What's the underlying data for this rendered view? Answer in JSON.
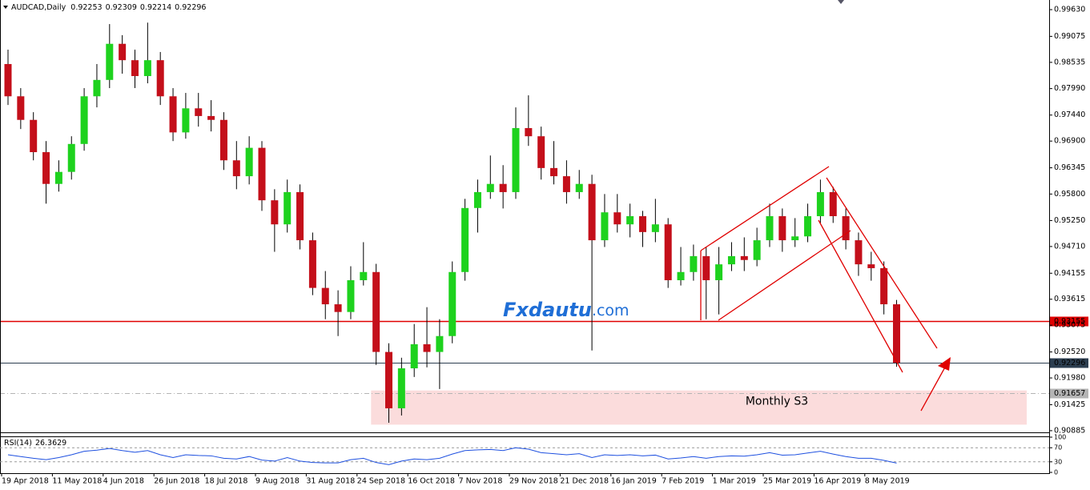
{
  "chart_data": {
    "type": "candlestick",
    "title": "AUDCAD,Daily",
    "header_ohlc": [
      0.92253,
      0.92309,
      0.92214,
      0.92296
    ],
    "bull_color": "#1ed21e",
    "bear_color": "#c40f1a",
    "categories": [
      "19 Apr 2018",
      null,
      null,
      null,
      "11 May 2018",
      null,
      null,
      null,
      "4 Jun 2018",
      null,
      null,
      null,
      "26 Jun 2018",
      null,
      null,
      null,
      "18 Jul 2018",
      null,
      null,
      null,
      "9 Aug 2018",
      null,
      null,
      null,
      "31 Aug 2018",
      null,
      null,
      null,
      "24 Sep 2018",
      null,
      null,
      null,
      "16 Oct 2018",
      null,
      null,
      null,
      "7 Nov 2018",
      null,
      null,
      null,
      "29 Nov 2018",
      null,
      null,
      null,
      "21 Dec 2018",
      null,
      null,
      null,
      "16 Jan 2019",
      null,
      null,
      null,
      "7 Feb 2019",
      null,
      null,
      null,
      "1 Mar 2019",
      null,
      null,
      null,
      "25 Mar 2019",
      null,
      null,
      null,
      "16 Apr 2019",
      null,
      null,
      null,
      "8 May 2019",
      null,
      null
    ],
    "open": [
      0.985,
      0.9783,
      0.9734,
      0.9667,
      0.9601,
      0.9626,
      0.9684,
      0.9783,
      0.9817,
      0.9892,
      0.9858,
      0.9825,
      0.9858,
      0.9783,
      0.9708,
      0.9758,
      0.9742,
      0.9734,
      0.965,
      0.9617,
      0.9676,
      0.9567,
      0.9517,
      0.9584,
      0.9484,
      0.9385,
      0.9351,
      0.9335,
      0.9401,
      0.9418,
      0.9252,
      0.9135,
      0.9218,
      0.9268,
      0.9252,
      0.9285,
      0.9418,
      0.9551,
      0.9584,
      0.9601,
      0.9584,
      0.9717,
      0.97,
      0.9634,
      0.9617,
      0.9584,
      0.9601,
      0.9484,
      0.9542,
      0.9517,
      0.9534,
      0.9501,
      0.9517,
      0.9401,
      0.9418,
      0.9451,
      0.9401,
      0.9434,
      0.9451,
      0.9443,
      0.9484,
      0.9534,
      0.9484,
      0.9492,
      0.9534,
      0.9584,
      0.9534,
      0.9484,
      0.9434,
      0.9426,
      0.9351
    ],
    "high": [
      0.988,
      0.98,
      0.975,
      0.969,
      0.965,
      0.97,
      0.98,
      0.985,
      0.9933,
      0.991,
      0.988,
      0.9936,
      0.9875,
      0.98,
      0.979,
      0.979,
      0.9775,
      0.975,
      0.969,
      0.97,
      0.969,
      0.959,
      0.961,
      0.96,
      0.95,
      0.942,
      0.938,
      0.943,
      0.948,
      0.9435,
      0.927,
      0.924,
      0.931,
      0.9345,
      0.932,
      0.944,
      0.957,
      0.961,
      0.966,
      0.964,
      0.976,
      0.9785,
      0.972,
      0.969,
      0.965,
      0.963,
      0.962,
      0.958,
      0.958,
      0.956,
      0.9545,
      0.957,
      0.953,
      0.947,
      0.9475,
      0.947,
      0.947,
      0.948,
      0.949,
      0.951,
      0.956,
      0.955,
      0.953,
      0.956,
      0.961,
      0.9595,
      0.955,
      0.95,
      0.946,
      0.944,
      0.936
    ],
    "low": [
      0.9765,
      0.9715,
      0.965,
      0.956,
      0.9585,
      0.961,
      0.967,
      0.976,
      0.98,
      0.983,
      0.98,
      0.981,
      0.9765,
      0.969,
      0.9695,
      0.972,
      0.971,
      0.963,
      0.959,
      0.96,
      0.9545,
      0.946,
      0.95,
      0.9465,
      0.937,
      0.932,
      0.9285,
      0.932,
      0.939,
      0.9225,
      0.9105,
      0.912,
      0.92,
      0.922,
      0.9175,
      0.927,
      0.94,
      0.95,
      0.957,
      0.955,
      0.957,
      0.968,
      0.961,
      0.96,
      0.956,
      0.957,
      0.9255,
      0.947,
      0.95,
      0.949,
      0.947,
      0.948,
      0.9385,
      0.939,
      0.94,
      0.932,
      0.933,
      0.942,
      0.942,
      0.943,
      0.947,
      0.946,
      0.947,
      0.948,
      0.952,
      0.952,
      0.9465,
      0.941,
      0.94,
      0.933,
      0.92214
    ],
    "close": [
      0.9783,
      0.9734,
      0.9667,
      0.9601,
      0.9626,
      0.9684,
      0.9783,
      0.9817,
      0.9892,
      0.9858,
      0.9825,
      0.9858,
      0.9783,
      0.9708,
      0.9758,
      0.9742,
      0.9734,
      0.965,
      0.9617,
      0.9676,
      0.9567,
      0.9517,
      0.9584,
      0.9484,
      0.9385,
      0.9351,
      0.9335,
      0.9401,
      0.9418,
      0.9252,
      0.9135,
      0.9218,
      0.9268,
      0.9252,
      0.9285,
      0.9418,
      0.9551,
      0.9584,
      0.9601,
      0.9584,
      0.9717,
      0.97,
      0.9634,
      0.9617,
      0.9584,
      0.9601,
      0.9484,
      0.9542,
      0.9517,
      0.9534,
      0.9501,
      0.9517,
      0.9401,
      0.9418,
      0.9451,
      0.9401,
      0.9434,
      0.9451,
      0.9443,
      0.9484,
      0.9534,
      0.9484,
      0.9492,
      0.9534,
      0.9584,
      0.9534,
      0.9484,
      0.9434,
      0.9426,
      0.9351,
      0.92296
    ],
    "ylim": [
      0.9085,
      0.9983
    ],
    "yticks": [
      {
        "value": 0.9963,
        "label": "0.99630"
      },
      {
        "value": 0.99075,
        "label": "0.99075"
      },
      {
        "value": 0.98535,
        "label": "0.98535"
      },
      {
        "value": 0.9799,
        "label": "0.97990"
      },
      {
        "value": 0.9744,
        "label": "0.97440"
      },
      {
        "value": 0.969,
        "label": "0.96900"
      },
      {
        "value": 0.96345,
        "label": "0.96345"
      },
      {
        "value": 0.958,
        "label": "0.95800"
      },
      {
        "value": 0.9525,
        "label": "0.95250"
      },
      {
        "value": 0.9471,
        "label": "0.94710"
      },
      {
        "value": 0.94155,
        "label": "0.94155"
      },
      {
        "value": 0.93615,
        "label": "0.93615"
      },
      {
        "value": 0.93075,
        "label": "0.93075"
      },
      {
        "value": 0.9252,
        "label": "0.92520"
      },
      {
        "value": 0.9198,
        "label": "0.91980"
      },
      {
        "value": 0.91425,
        "label": "0.91425"
      },
      {
        "value": 0.90885,
        "label": "0.90885"
      }
    ],
    "levels": [
      {
        "value": 0.93155,
        "color": "#e00000",
        "text_color": "#ffffff",
        "style": "solid"
      },
      {
        "value": 0.92296,
        "color": "#2c3e50",
        "text_color": "#ffffff",
        "style": "solid"
      },
      {
        "value": 0.91657,
        "color": "#b4b4b4",
        "text_color": "#ffffff",
        "style": "dashed"
      }
    ],
    "zone": {
      "label": "Monthly S3",
      "range": [
        0.9172,
        0.9101
      ],
      "color": "#fbdcdc"
    },
    "watermark": {
      "brand": "Fxdautu",
      "suffix": ".com"
    },
    "rsi": {
      "name": "RSI(14)",
      "color": "#1e50e0",
      "ylim": [
        0,
        100
      ],
      "yticks": [
        100,
        70,
        30,
        0
      ],
      "levels": [
        70,
        30
      ],
      "values": [
        50,
        45,
        40,
        36,
        42,
        50,
        60,
        63,
        68,
        62,
        57,
        62,
        50,
        42,
        50,
        48,
        47,
        40,
        38,
        45,
        35,
        32,
        42,
        32,
        28,
        27,
        27,
        36,
        40,
        28,
        22,
        32,
        38,
        36,
        40,
        52,
        62,
        64,
        65,
        62,
        70,
        66,
        56,
        53,
        50,
        53,
        42,
        50,
        48,
        50,
        47,
        49,
        38,
        41,
        45,
        40,
        45,
        47,
        46,
        50,
        56,
        49,
        50,
        55,
        60,
        52,
        45,
        40,
        40,
        34,
        26.3629
      ]
    }
  }
}
